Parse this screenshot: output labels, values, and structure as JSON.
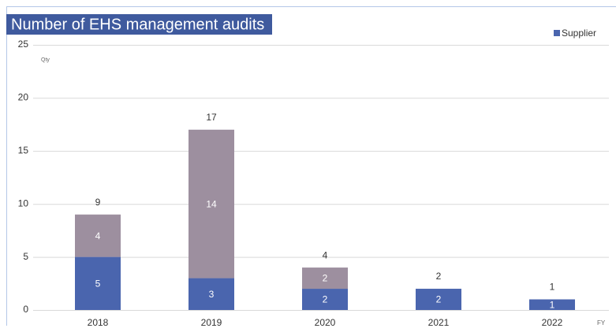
{
  "chart_data": {
    "type": "stacked_bar",
    "title": "Number of EHS management audits",
    "y_label": "Qty",
    "x_label": "FY",
    "categories": [
      "2018",
      "2019",
      "2020",
      "2021",
      "2022"
    ],
    "series": [
      {
        "name": "Supplier",
        "color": "#4a65ae",
        "values": [
          5,
          3,
          2,
          2,
          1
        ]
      },
      {
        "color": "#9d8f9f",
        "values": [
          4,
          14,
          2,
          null,
          null
        ]
      }
    ],
    "totals": [
      9,
      17,
      4,
      2,
      1
    ],
    "ylim": [
      0,
      25
    ],
    "yticks": [
      0,
      5,
      10,
      15,
      20,
      25
    ],
    "grid": true,
    "legend": "top-right"
  }
}
